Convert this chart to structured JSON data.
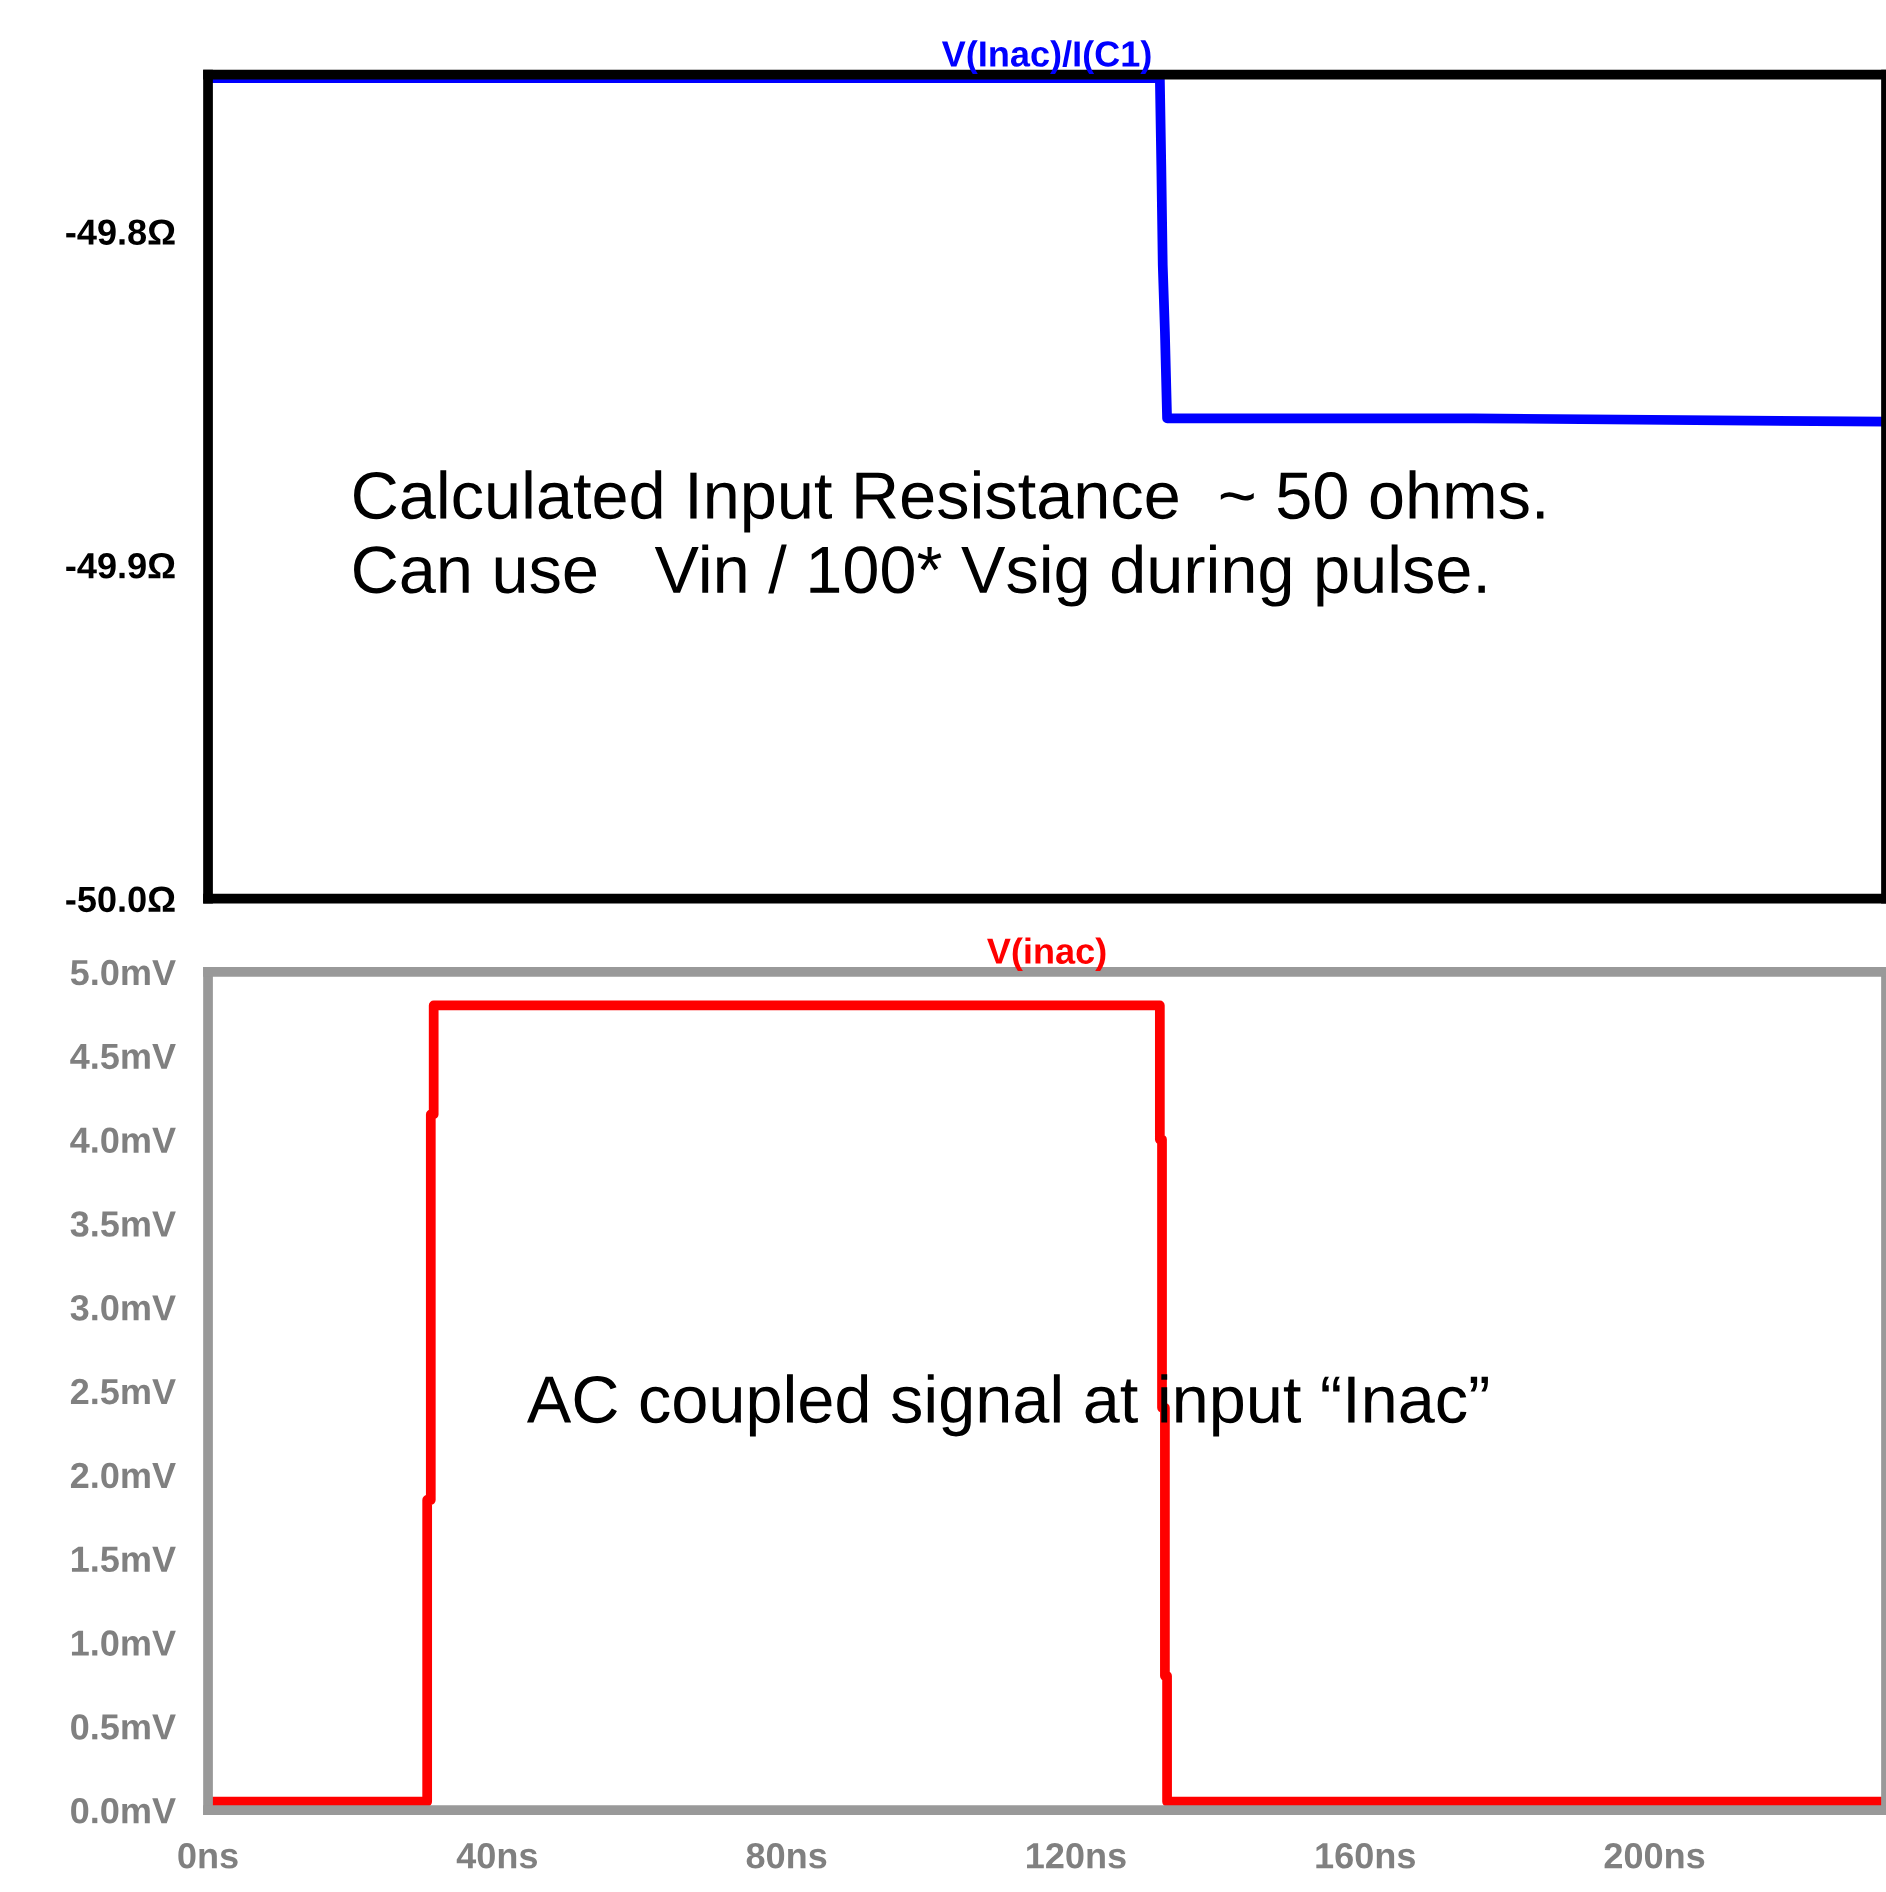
{
  "chart_data": [
    {
      "type": "line",
      "title": "V(Inac)/I(C1)",
      "xlim": [
        0,
        232
      ],
      "ylim": [
        -50.0,
        -49.753
      ],
      "yticks": [
        {
          "value": -49.8,
          "label": "-49.8Ω"
        },
        {
          "value": -49.9,
          "label": "-49.9Ω"
        },
        {
          "value": -50.0,
          "label": "-50.0Ω"
        }
      ],
      "tick_labels": "y",
      "grid": false,
      "legend": false,
      "series": [
        {
          "color": "#0000ff",
          "x": [
            0,
            131.6,
            131.8,
            132.0,
            132.3,
            132.6,
            175,
            232
          ],
          "values": [
            -49.754,
            -49.754,
            -49.78,
            -49.81,
            -49.83,
            -49.856,
            -49.856,
            -49.857
          ]
        }
      ],
      "annotations": [
        "Calculated Input Resistance  ~ 50 ohms.\nCan use   Vin / 100* Vsig during pulse."
      ]
    },
    {
      "type": "line",
      "title": "V(inac)",
      "xlim": [
        0,
        232
      ],
      "ylim": [
        0,
        5.0
      ],
      "xticks": [
        {
          "value": 0,
          "label": "0ns"
        },
        {
          "value": 40,
          "label": "40ns"
        },
        {
          "value": 80,
          "label": "80ns"
        },
        {
          "value": 120,
          "label": "120ns"
        },
        {
          "value": 160,
          "label": "160ns"
        },
        {
          "value": 200,
          "label": "200ns"
        }
      ],
      "yticks": [
        {
          "value": 0,
          "label": "0.0mV"
        },
        {
          "value": 0.5,
          "label": "0.5mV"
        },
        {
          "value": 1.0,
          "label": "1.0mV"
        },
        {
          "value": 1.5,
          "label": "1.5mV"
        },
        {
          "value": 2.0,
          "label": "2.0mV"
        },
        {
          "value": 2.5,
          "label": "2.5mV"
        },
        {
          "value": 3.0,
          "label": "3.0mV"
        },
        {
          "value": 3.5,
          "label": "3.5mV"
        },
        {
          "value": 4.0,
          "label": "4.0mV"
        },
        {
          "value": 4.5,
          "label": "4.5mV"
        },
        {
          "value": 5.0,
          "label": "5.0mV"
        }
      ],
      "grid": false,
      "legend": false,
      "series": [
        {
          "color": "#ff0000",
          "x": [
            0,
            30.3,
            30.3,
            30.8,
            30.8,
            31.2,
            31.2,
            131.6,
            131.6,
            131.9,
            131.9,
            132.3,
            132.3,
            132.6,
            132.6,
            232
          ],
          "values": [
            0.05,
            0.05,
            1.85,
            1.85,
            4.15,
            4.15,
            4.8,
            4.8,
            4.0,
            4.0,
            2.4,
            2.4,
            0.8,
            0.8,
            0.05,
            0.05
          ]
        }
      ],
      "annotations": [
        "AC coupled signal at input “Inac”"
      ]
    }
  ]
}
